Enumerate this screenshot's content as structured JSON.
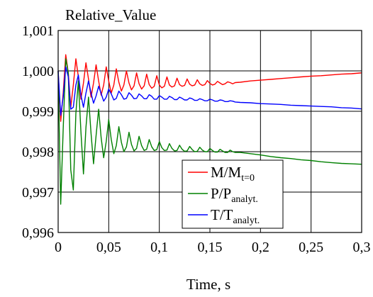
{
  "chart_data": {
    "type": "line",
    "ylabel": "Relative_Value",
    "xlabel": "Time, s",
    "xlim": [
      0,
      0.3
    ],
    "ylim": [
      0.996,
      1.001
    ],
    "x_ticks": [
      0,
      0.05,
      0.1,
      0.15,
      0.2,
      0.25,
      0.3
    ],
    "x_tick_labels": [
      "0",
      "0,05",
      "0,1",
      "0,15",
      "0,2",
      "0,25",
      "0,3"
    ],
    "y_ticks": [
      0.996,
      0.997,
      0.998,
      0.999,
      1.0,
      1.001
    ],
    "y_tick_labels": [
      "0,996",
      "0,997",
      "0,998",
      "0,999",
      "1,000",
      "1,001"
    ],
    "grid": true,
    "legend_position": "lower-right",
    "series": [
      {
        "name": "M/M",
        "name_sub": "t=0",
        "color": "#ff0000",
        "x": [
          0,
          0.0025,
          0.005,
          0.0075,
          0.01,
          0.0125,
          0.015,
          0.0175,
          0.02,
          0.0225,
          0.025,
          0.0275,
          0.03,
          0.0325,
          0.035,
          0.0375,
          0.04,
          0.0425,
          0.045,
          0.0475,
          0.05,
          0.0525,
          0.055,
          0.0575,
          0.06,
          0.0625,
          0.065,
          0.0675,
          0.07,
          0.0725,
          0.075,
          0.0775,
          0.08,
          0.0825,
          0.085,
          0.0875,
          0.09,
          0.0925,
          0.095,
          0.0975,
          0.1,
          0.1025,
          0.105,
          0.1075,
          0.11,
          0.1125,
          0.115,
          0.1175,
          0.12,
          0.1225,
          0.125,
          0.1275,
          0.13,
          0.1325,
          0.135,
          0.1375,
          0.14,
          0.1425,
          0.145,
          0.1475,
          0.15,
          0.1525,
          0.155,
          0.1575,
          0.16,
          0.1625,
          0.165,
          0.1675,
          0.17,
          0.1725,
          0.175,
          0.18,
          0.19,
          0.2,
          0.21,
          0.22,
          0.23,
          0.24,
          0.25,
          0.26,
          0.27,
          0.28,
          0.29,
          0.3
        ],
        "y": [
          1.0,
          0.99875,
          0.99945,
          1.0004,
          0.99995,
          0.9991,
          0.99965,
          1.0003,
          0.99985,
          0.9993,
          0.9997,
          1.0002,
          0.9998,
          0.99935,
          0.9997,
          1.00015,
          0.99975,
          0.9994,
          0.99965,
          1.0001,
          0.99975,
          0.99945,
          0.99965,
          1.00005,
          0.99972,
          0.9995,
          0.99965,
          1.0,
          0.9997,
          0.99953,
          0.99963,
          0.99995,
          0.99968,
          0.99955,
          0.99963,
          0.99992,
          0.99966,
          0.99957,
          0.99962,
          0.99988,
          0.99965,
          0.99958,
          0.99962,
          0.99985,
          0.99965,
          0.9996,
          0.99963,
          0.99982,
          0.99966,
          0.99962,
          0.99964,
          0.9998,
          0.99967,
          0.99963,
          0.99965,
          0.99978,
          0.99968,
          0.99964,
          0.99966,
          0.99976,
          0.99969,
          0.99965,
          0.99967,
          0.99974,
          0.9997,
          0.99966,
          0.99968,
          0.99973,
          0.99971,
          0.99968,
          0.99971,
          0.99972,
          0.99975,
          0.99977,
          0.99979,
          0.99981,
          0.99983,
          0.99985,
          0.99987,
          0.99988,
          0.9999,
          0.99992,
          0.99993,
          0.99995
        ]
      },
      {
        "name": "P/P",
        "name_sub": "analyt.",
        "color": "#008000",
        "x": [
          0,
          0.0025,
          0.005,
          0.0075,
          0.01,
          0.0125,
          0.015,
          0.0175,
          0.02,
          0.0225,
          0.025,
          0.0275,
          0.03,
          0.0325,
          0.035,
          0.0375,
          0.04,
          0.0425,
          0.045,
          0.0475,
          0.05,
          0.0525,
          0.055,
          0.0575,
          0.06,
          0.0625,
          0.065,
          0.0675,
          0.07,
          0.0725,
          0.075,
          0.0775,
          0.08,
          0.0825,
          0.085,
          0.0875,
          0.09,
          0.0925,
          0.095,
          0.0975,
          0.1,
          0.1025,
          0.105,
          0.1075,
          0.11,
          0.1125,
          0.115,
          0.1175,
          0.12,
          0.1225,
          0.125,
          0.1275,
          0.13,
          0.1325,
          0.135,
          0.1375,
          0.14,
          0.1425,
          0.145,
          0.1475,
          0.15,
          0.1525,
          0.155,
          0.1575,
          0.16,
          0.1625,
          0.165,
          0.1675,
          0.17,
          0.1725,
          0.175,
          0.18,
          0.19,
          0.2,
          0.21,
          0.22,
          0.23,
          0.24,
          0.25,
          0.26,
          0.27,
          0.28,
          0.29,
          0.3
        ],
        "y": [
          1.0,
          0.9967,
          0.99855,
          1.0003,
          0.99995,
          0.99755,
          0.99705,
          0.99895,
          0.99975,
          0.9985,
          0.99745,
          0.9986,
          0.99935,
          0.99845,
          0.9977,
          0.9984,
          0.99905,
          0.99835,
          0.99785,
          0.99825,
          0.9988,
          0.9983,
          0.99795,
          0.99815,
          0.99862,
          0.99823,
          0.998,
          0.99812,
          0.99848,
          0.99818,
          0.99802,
          0.99808,
          0.99838,
          0.99815,
          0.99803,
          0.99806,
          0.9983,
          0.99812,
          0.99803,
          0.99805,
          0.99825,
          0.9981,
          0.99803,
          0.99804,
          0.9982,
          0.99808,
          0.99802,
          0.99803,
          0.99816,
          0.99806,
          0.99801,
          0.99802,
          0.99813,
          0.99805,
          0.998,
          0.99801,
          0.99811,
          0.99804,
          0.998,
          0.998,
          0.99808,
          0.99803,
          0.99799,
          0.99799,
          0.99806,
          0.99802,
          0.99798,
          0.99798,
          0.99804,
          0.998,
          0.99798,
          0.99798,
          0.99795,
          0.99792,
          0.99788,
          0.99785,
          0.99783,
          0.9978,
          0.99778,
          0.99775,
          0.99773,
          0.99771,
          0.9977,
          0.99769
        ]
      },
      {
        "name": "T/T",
        "name_sub": "analyt.",
        "color": "#0000ff",
        "x": [
          0,
          0.0025,
          0.005,
          0.0075,
          0.01,
          0.0125,
          0.015,
          0.0175,
          0.02,
          0.0225,
          0.025,
          0.0275,
          0.03,
          0.0325,
          0.035,
          0.0375,
          0.04,
          0.0425,
          0.045,
          0.0475,
          0.05,
          0.0525,
          0.055,
          0.0575,
          0.06,
          0.0625,
          0.065,
          0.0675,
          0.07,
          0.0725,
          0.075,
          0.0775,
          0.08,
          0.0825,
          0.085,
          0.0875,
          0.09,
          0.0925,
          0.095,
          0.0975,
          0.1,
          0.1025,
          0.105,
          0.1075,
          0.11,
          0.1125,
          0.115,
          0.1175,
          0.12,
          0.1225,
          0.125,
          0.1275,
          0.13,
          0.1325,
          0.135,
          0.1375,
          0.14,
          0.1425,
          0.145,
          0.1475,
          0.15,
          0.1525,
          0.155,
          0.1575,
          0.16,
          0.1625,
          0.165,
          0.1675,
          0.17,
          0.1725,
          0.175,
          0.18,
          0.19,
          0.2,
          0.21,
          0.22,
          0.23,
          0.24,
          0.25,
          0.26,
          0.27,
          0.28,
          0.29,
          0.3
        ],
        "y": [
          1.0,
          0.9989,
          0.99935,
          1.0001,
          0.99985,
          0.99905,
          0.9991,
          0.99965,
          0.9999,
          0.9994,
          0.9991,
          0.99945,
          0.99975,
          0.99945,
          0.9992,
          0.99938,
          0.99962,
          0.99944,
          0.99925,
          0.99935,
          0.99955,
          0.99943,
          0.99928,
          0.99932,
          0.9995,
          0.99941,
          0.9993,
          0.99932,
          0.99946,
          0.9994,
          0.99931,
          0.99932,
          0.99943,
          0.99938,
          0.99931,
          0.99931,
          0.99941,
          0.99937,
          0.9993,
          0.9993,
          0.99939,
          0.99935,
          0.9993,
          0.9993,
          0.99937,
          0.99934,
          0.99929,
          0.99929,
          0.99935,
          0.99932,
          0.99928,
          0.99928,
          0.99933,
          0.99931,
          0.99927,
          0.99927,
          0.99931,
          0.99929,
          0.99926,
          0.99926,
          0.9993,
          0.99928,
          0.99925,
          0.99925,
          0.99928,
          0.99927,
          0.99924,
          0.99924,
          0.99926,
          0.99925,
          0.99923,
          0.99922,
          0.99921,
          0.99919,
          0.99918,
          0.99917,
          0.99915,
          0.99914,
          0.99913,
          0.99912,
          0.99911,
          0.99909,
          0.99908,
          0.99906
        ]
      }
    ]
  }
}
